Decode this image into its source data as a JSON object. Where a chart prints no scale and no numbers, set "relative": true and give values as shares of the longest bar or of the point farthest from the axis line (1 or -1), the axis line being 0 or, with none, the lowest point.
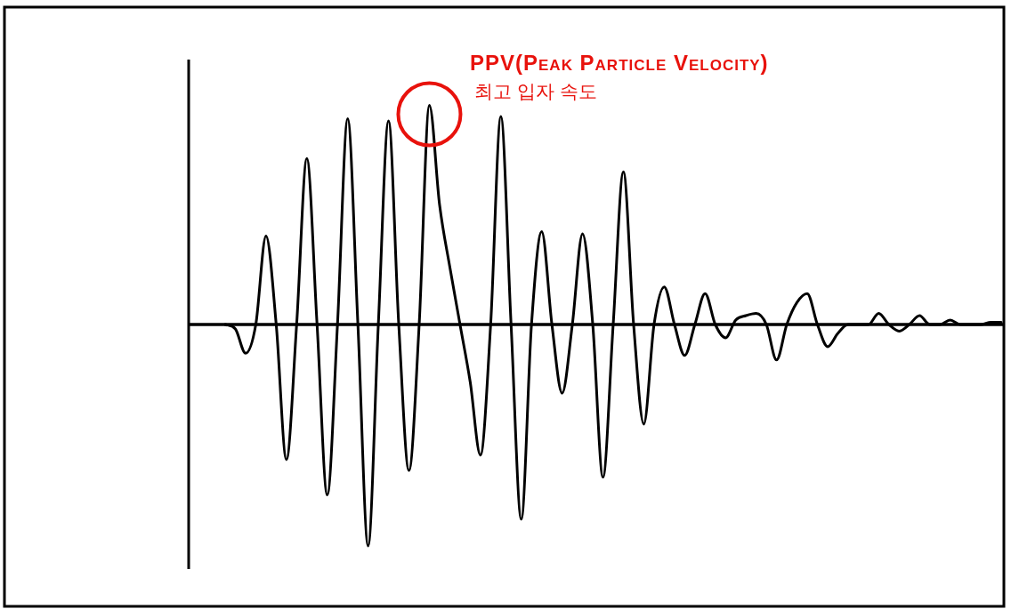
{
  "chart_data": {
    "type": "line",
    "relative": true,
    "title": "PPV(Peak Particle Velocity)",
    "subtitle": "최고 입자 속도",
    "categories": [
      null,
      null,
      null,
      null,
      null,
      null,
      null,
      null,
      null,
      null,
      null,
      null,
      null,
      null,
      null,
      null,
      null,
      null,
      null,
      null,
      null,
      null,
      null,
      null,
      null,
      null,
      null,
      null,
      null,
      null,
      null,
      null,
      null,
      null,
      null,
      null,
      null,
      null,
      null,
      null,
      null,
      null,
      null,
      null,
      null,
      null,
      null,
      null,
      null,
      null,
      null,
      null,
      null,
      null,
      null,
      null,
      null,
      null,
      null,
      null,
      null,
      null,
      null,
      null,
      null,
      null,
      null,
      null,
      null,
      null,
      null,
      null,
      null,
      null,
      null,
      null,
      null
    ],
    "series": [
      {
        "color": "#000000",
        "values": [
          0,
          -0.02,
          -0.13,
          0,
          0.4,
          0,
          -0.61,
          0,
          0.75,
          0,
          -0.77,
          0,
          0.93,
          0,
          -1,
          0,
          0.92,
          0,
          -0.66,
          0,
          0.99,
          0.54,
          0.26,
          0,
          -0.26,
          -0.59,
          0,
          0.94,
          0,
          -0.88,
          0,
          0.42,
          0,
          -0.31,
          0,
          0.41,
          0,
          -0.69,
          0,
          0.69,
          0,
          -0.45,
          0,
          0.17,
          0,
          -0.14,
          0,
          0.14,
          0,
          -0.06,
          0.02,
          0.04,
          0.05,
          0,
          -0.16,
          0,
          0.1,
          0.14,
          0,
          -0.1,
          -0.04,
          0,
          0,
          0,
          0.05,
          0,
          -0.03,
          0,
          0.04,
          0,
          0,
          0.02,
          0,
          0,
          0,
          0.01,
          0.01
        ]
      }
    ]
  }
}
